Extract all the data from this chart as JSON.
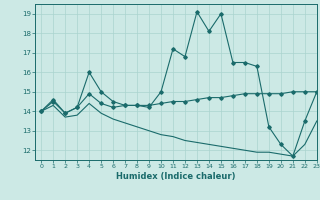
{
  "xlabel": "Humidex (Indice chaleur)",
  "bg_color": "#cce9e5",
  "line_color": "#1a6b6b",
  "grid_color": "#aad4cf",
  "xlim": [
    -0.5,
    23
  ],
  "ylim": [
    11.5,
    19.5
  ],
  "yticks": [
    12,
    13,
    14,
    15,
    16,
    17,
    18,
    19
  ],
  "xticks": [
    0,
    1,
    2,
    3,
    4,
    5,
    6,
    7,
    8,
    9,
    10,
    11,
    12,
    13,
    14,
    15,
    16,
    17,
    18,
    19,
    20,
    21,
    22,
    23
  ],
  "line1_x": [
    0,
    1,
    2,
    3,
    4,
    5,
    6,
    7,
    8,
    9,
    10,
    11,
    12,
    13,
    14,
    15,
    16,
    17,
    18,
    19,
    20,
    21,
    22,
    23
  ],
  "line1_y": [
    14.0,
    14.5,
    13.9,
    14.2,
    16.0,
    15.0,
    14.5,
    14.3,
    14.3,
    14.2,
    15.0,
    17.2,
    16.8,
    19.1,
    18.1,
    19.0,
    16.5,
    16.5,
    16.3,
    13.2,
    12.3,
    11.7,
    13.5,
    15.0
  ],
  "line2_x": [
    0,
    1,
    2,
    3,
    4,
    5,
    6,
    7,
    8,
    9,
    10,
    11,
    12,
    13,
    14,
    15,
    16,
    17,
    18,
    19,
    20,
    21,
    22,
    23
  ],
  "line2_y": [
    14.0,
    14.6,
    13.9,
    14.2,
    14.9,
    14.4,
    14.2,
    14.3,
    14.3,
    14.3,
    14.4,
    14.5,
    14.5,
    14.6,
    14.7,
    14.7,
    14.8,
    14.9,
    14.9,
    14.9,
    14.9,
    15.0,
    15.0,
    15.0
  ],
  "line3_x": [
    0,
    1,
    2,
    3,
    4,
    5,
    6,
    7,
    8,
    9,
    10,
    11,
    12,
    13,
    14,
    15,
    16,
    17,
    18,
    19,
    20,
    21,
    22,
    23
  ],
  "line3_y": [
    14.0,
    14.3,
    13.7,
    13.8,
    14.4,
    13.9,
    13.6,
    13.4,
    13.2,
    13.0,
    12.8,
    12.7,
    12.5,
    12.4,
    12.3,
    12.2,
    12.1,
    12.0,
    11.9,
    11.9,
    11.8,
    11.7,
    12.3,
    13.5
  ]
}
